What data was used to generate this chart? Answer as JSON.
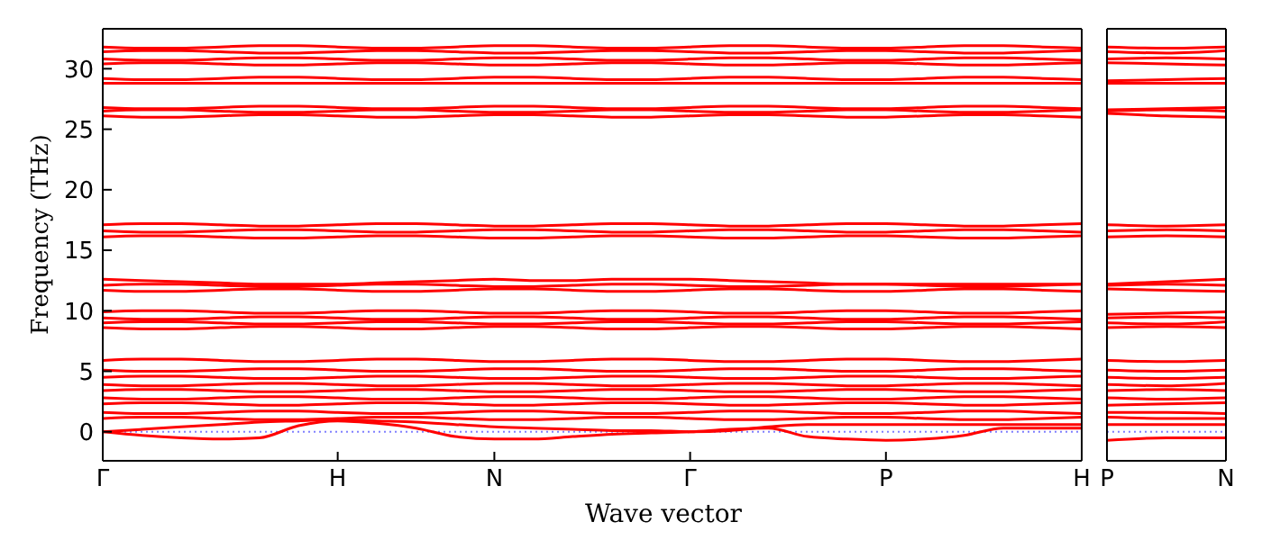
{
  "chart_data": [
    {
      "type": "line",
      "ylabel": "Frequency (THz)",
      "xlabel": "Wave vector",
      "ylim": [
        -2.4,
        33.3
      ],
      "yticks": [
        0,
        5,
        10,
        15,
        20,
        25,
        30
      ],
      "categories": [
        "Γ",
        null,
        null,
        null,
        null,
        null,
        "H",
        null,
        null,
        null,
        "N",
        null,
        null,
        null,
        null,
        "Γ",
        null,
        null,
        null,
        null,
        "P",
        null,
        null,
        null,
        null,
        "H"
      ],
      "marker": "none",
      "line_style": "solid",
      "legend": false,
      "ref_lines": [
        {
          "axis": "y",
          "value": 0,
          "color": "#8080ff",
          "line_style": "dotted"
        }
      ],
      "series": [
        {
          "color": "#ff0000",
          "values": [
            0,
            -0.3,
            -0.5,
            -0.6,
            -0.5,
            0.5,
            0.9,
            0.7,
            0.3,
            -0.4,
            -0.6,
            -0.6,
            -0.4,
            -0.2,
            -0.1,
            0,
            0.2,
            0.3,
            -0.4,
            -0.6,
            -0.7,
            -0.6,
            -0.3,
            0.3,
            0.3,
            0.3
          ]
        },
        {
          "color": "#ff0000",
          "values": [
            0,
            0.2,
            0.4,
            0.6,
            0.8,
            0.9,
            1,
            0.9,
            0.8,
            0.6,
            0.4,
            0.3,
            0.2,
            0.1,
            0.1,
            0,
            0.1,
            0.4,
            0.6,
            0.6,
            0.6,
            0.6,
            0.6,
            0.6,
            0.6,
            0.6
          ]
        },
        {
          "color": "#ff0000",
          "values": [
            1.1,
            1.2,
            1.2,
            1.1,
            1,
            1,
            1.1,
            1.2,
            1.2,
            1.1,
            1,
            1,
            1.1,
            1.2,
            1.2,
            1.1,
            1,
            1,
            1.1,
            1.2,
            1.2,
            1.1,
            1,
            1,
            1.1,
            1.2
          ]
        },
        {
          "color": "#ff0000",
          "values": [
            1.6,
            1.5,
            1.5,
            1.6,
            1.7,
            1.7,
            1.6,
            1.5,
            1.5,
            1.6,
            1.7,
            1.7,
            1.6,
            1.5,
            1.5,
            1.6,
            1.7,
            1.7,
            1.6,
            1.5,
            1.5,
            1.6,
            1.7,
            1.7,
            1.6,
            1.5
          ]
        },
        {
          "color": "#ff0000",
          "values": [
            2.3,
            2.4,
            2.4,
            2.3,
            2.2,
            2.2,
            2.3,
            2.4,
            2.4,
            2.3,
            2.2,
            2.2,
            2.3,
            2.4,
            2.4,
            2.3,
            2.2,
            2.2,
            2.3,
            2.4,
            2.4,
            2.3,
            2.2,
            2.2,
            2.3,
            2.4
          ]
        },
        {
          "color": "#ff0000",
          "values": [
            2.8,
            2.7,
            2.7,
            2.8,
            2.9,
            2.9,
            2.8,
            2.7,
            2.7,
            2.8,
            2.9,
            2.9,
            2.8,
            2.7,
            2.7,
            2.8,
            2.9,
            2.9,
            2.8,
            2.7,
            2.7,
            2.8,
            2.9,
            2.9,
            2.8,
            2.7
          ]
        },
        {
          "color": "#ff0000",
          "values": [
            3.4,
            3.5,
            3.5,
            3.4,
            3.3,
            3.3,
            3.4,
            3.5,
            3.5,
            3.4,
            3.3,
            3.3,
            3.4,
            3.5,
            3.5,
            3.4,
            3.3,
            3.3,
            3.4,
            3.5,
            3.5,
            3.4,
            3.3,
            3.3,
            3.4,
            3.5
          ]
        },
        {
          "color": "#ff0000",
          "values": [
            3.9,
            3.8,
            3.8,
            3.9,
            4,
            4,
            3.9,
            3.8,
            3.8,
            3.9,
            4,
            4,
            3.9,
            3.8,
            3.8,
            3.9,
            4,
            4,
            3.9,
            3.8,
            3.8,
            3.9,
            4,
            4,
            3.9,
            3.8
          ]
        },
        {
          "color": "#ff0000",
          "values": [
            4.5,
            4.6,
            4.6,
            4.5,
            4.4,
            4.4,
            4.5,
            4.6,
            4.6,
            4.5,
            4.4,
            4.4,
            4.5,
            4.6,
            4.6,
            4.5,
            4.4,
            4.4,
            4.5,
            4.6,
            4.6,
            4.5,
            4.4,
            4.4,
            4.5,
            4.6
          ]
        },
        {
          "color": "#ff0000",
          "values": [
            5.1,
            5,
            5,
            5.1,
            5.2,
            5.2,
            5.1,
            5,
            5,
            5.1,
            5.2,
            5.2,
            5.1,
            5,
            5,
            5.1,
            5.2,
            5.2,
            5.1,
            5,
            5,
            5.1,
            5.2,
            5.2,
            5.1,
            5
          ]
        },
        {
          "color": "#ff0000",
          "values": [
            5.9,
            6,
            6,
            5.9,
            5.8,
            5.8,
            5.9,
            6,
            6,
            5.9,
            5.8,
            5.8,
            5.9,
            6,
            6,
            5.9,
            5.8,
            5.8,
            5.9,
            6,
            6,
            5.9,
            5.8,
            5.8,
            5.9,
            6
          ]
        },
        {
          "color": "#ff0000",
          "values": [
            8.6,
            8.5,
            8.5,
            8.6,
            8.7,
            8.7,
            8.6,
            8.5,
            8.5,
            8.6,
            8.7,
            8.7,
            8.6,
            8.5,
            8.5,
            8.6,
            8.7,
            8.7,
            8.6,
            8.5,
            8.5,
            8.6,
            8.7,
            8.7,
            8.6,
            8.5
          ]
        },
        {
          "color": "#ff0000",
          "values": [
            9,
            9.1,
            9.1,
            9,
            8.9,
            8.9,
            9,
            9.1,
            9.1,
            9,
            8.9,
            8.9,
            9,
            9.1,
            9.1,
            9,
            8.9,
            8.9,
            9,
            9.1,
            9.1,
            9,
            8.9,
            8.9,
            9,
            9.1
          ]
        },
        {
          "color": "#ff0000",
          "values": [
            9.4,
            9.3,
            9.3,
            9.4,
            9.5,
            9.5,
            9.4,
            9.3,
            9.3,
            9.4,
            9.5,
            9.5,
            9.4,
            9.3,
            9.3,
            9.4,
            9.5,
            9.5,
            9.4,
            9.3,
            9.3,
            9.4,
            9.5,
            9.5,
            9.4,
            9.3
          ]
        },
        {
          "color": "#ff0000",
          "values": [
            9.9,
            10,
            10,
            9.9,
            9.8,
            9.8,
            9.9,
            10,
            10,
            9.9,
            9.8,
            9.8,
            9.9,
            10,
            10,
            9.9,
            9.8,
            9.8,
            9.9,
            10,
            10,
            9.9,
            9.8,
            9.8,
            9.9,
            10
          ]
        },
        {
          "color": "#ff0000",
          "values": [
            11.7,
            11.6,
            11.6,
            11.7,
            11.8,
            11.8,
            11.7,
            11.6,
            11.6,
            11.7,
            11.8,
            11.8,
            11.7,
            11.6,
            11.6,
            11.7,
            11.8,
            11.8,
            11.7,
            11.6,
            11.6,
            11.7,
            11.8,
            11.8,
            11.7,
            11.6
          ]
        },
        {
          "color": "#ff0000",
          "values": [
            12.1,
            12.2,
            12.2,
            12.1,
            12,
            12,
            12.1,
            12.2,
            12.2,
            12.1,
            12,
            12,
            12.1,
            12.2,
            12.2,
            12.1,
            12,
            12,
            12.1,
            12.2,
            12.2,
            12.1,
            12,
            12,
            12.1,
            12.2
          ]
        },
        {
          "color": "#ff0000",
          "values": [
            12.6,
            12.5,
            12.4,
            12.3,
            12.2,
            12.2,
            12.2,
            12.3,
            12.4,
            12.5,
            12.6,
            12.5,
            12.5,
            12.6,
            12.6,
            12.6,
            12.5,
            12.4,
            12.3,
            12.2,
            12.2,
            12.2,
            12.2,
            12.2,
            12.2,
            12.2
          ]
        },
        {
          "color": "#ff0000",
          "values": [
            16.1,
            16.2,
            16.2,
            16.1,
            16,
            16,
            16.1,
            16.2,
            16.2,
            16.1,
            16,
            16,
            16.1,
            16.2,
            16.2,
            16.1,
            16,
            16,
            16.1,
            16.2,
            16.2,
            16.1,
            16,
            16,
            16.1,
            16.2
          ]
        },
        {
          "color": "#ff0000",
          "values": [
            16.6,
            16.5,
            16.5,
            16.6,
            16.7,
            16.7,
            16.6,
            16.5,
            16.5,
            16.6,
            16.7,
            16.7,
            16.6,
            16.5,
            16.5,
            16.6,
            16.7,
            16.7,
            16.6,
            16.5,
            16.5,
            16.6,
            16.7,
            16.7,
            16.6,
            16.5
          ]
        },
        {
          "color": "#ff0000",
          "values": [
            17.1,
            17.2,
            17.2,
            17.1,
            17,
            17,
            17.1,
            17.2,
            17.2,
            17.1,
            17,
            17,
            17.1,
            17.2,
            17.2,
            17.1,
            17,
            17,
            17.1,
            17.2,
            17.2,
            17.1,
            17,
            17,
            17.1,
            17.2
          ]
        },
        {
          "color": "#ff0000",
          "values": [
            26.1,
            26,
            26,
            26.1,
            26.2,
            26.2,
            26.1,
            26,
            26,
            26.1,
            26.2,
            26.2,
            26.1,
            26,
            26,
            26.1,
            26.2,
            26.2,
            26.1,
            26,
            26,
            26.1,
            26.2,
            26.2,
            26.1,
            26
          ]
        },
        {
          "color": "#ff0000",
          "values": [
            26.5,
            26.6,
            26.6,
            26.5,
            26.4,
            26.4,
            26.5,
            26.6,
            26.6,
            26.5,
            26.4,
            26.4,
            26.5,
            26.6,
            26.6,
            26.5,
            26.4,
            26.4,
            26.5,
            26.6,
            26.6,
            26.5,
            26.4,
            26.4,
            26.5,
            26.6
          ]
        },
        {
          "color": "#ff0000",
          "values": [
            26.8,
            26.7,
            26.7,
            26.8,
            26.9,
            26.9,
            26.8,
            26.7,
            26.7,
            26.8,
            26.9,
            26.9,
            26.8,
            26.7,
            26.7,
            26.8,
            26.9,
            26.9,
            26.8,
            26.7,
            26.7,
            26.8,
            26.9,
            26.9,
            26.8,
            26.7
          ]
        },
        {
          "color": "#ff0000",
          "values": [
            28.8,
            28.8,
            28.8,
            28.8,
            28.8,
            28.8,
            28.8,
            28.8,
            28.8,
            28.8,
            28.8,
            28.8,
            28.8,
            28.8,
            28.8,
            28.8,
            28.8,
            28.8,
            28.8,
            28.8,
            28.8,
            28.8,
            28.8,
            28.8,
            28.8,
            28.8
          ]
        },
        {
          "color": "#ff0000",
          "values": [
            29.2,
            29.1,
            29.1,
            29.2,
            29.3,
            29.3,
            29.2,
            29.1,
            29.1,
            29.2,
            29.3,
            29.3,
            29.2,
            29.1,
            29.1,
            29.2,
            29.3,
            29.3,
            29.2,
            29.1,
            29.1,
            29.2,
            29.3,
            29.3,
            29.2,
            29.1
          ]
        },
        {
          "color": "#ff0000",
          "values": [
            30.4,
            30.5,
            30.5,
            30.4,
            30.3,
            30.3,
            30.4,
            30.5,
            30.5,
            30.4,
            30.3,
            30.3,
            30.4,
            30.5,
            30.5,
            30.4,
            30.3,
            30.3,
            30.4,
            30.5,
            30.5,
            30.4,
            30.3,
            30.3,
            30.4,
            30.5
          ]
        },
        {
          "color": "#ff0000",
          "values": [
            30.8,
            30.7,
            30.7,
            30.8,
            30.9,
            30.9,
            30.8,
            30.7,
            30.7,
            30.8,
            30.9,
            30.9,
            30.8,
            30.7,
            30.7,
            30.8,
            30.9,
            30.9,
            30.8,
            30.7,
            30.7,
            30.8,
            30.9,
            30.9,
            30.8,
            30.7
          ]
        },
        {
          "color": "#ff0000",
          "values": [
            31.4,
            31.5,
            31.5,
            31.4,
            31.3,
            31.3,
            31.4,
            31.5,
            31.5,
            31.4,
            31.3,
            31.3,
            31.4,
            31.5,
            31.5,
            31.4,
            31.3,
            31.3,
            31.4,
            31.5,
            31.5,
            31.4,
            31.3,
            31.3,
            31.4,
            31.5
          ]
        },
        {
          "color": "#ff0000",
          "values": [
            31.8,
            31.7,
            31.7,
            31.8,
            31.9,
            31.9,
            31.8,
            31.7,
            31.7,
            31.8,
            31.9,
            31.9,
            31.8,
            31.7,
            31.7,
            31.8,
            31.9,
            31.9,
            31.8,
            31.7,
            31.7,
            31.8,
            31.9,
            31.9,
            31.8,
            31.7
          ]
        }
      ]
    },
    {
      "type": "line",
      "tick_labels": "x",
      "ylim": [
        -2.4,
        33.3
      ],
      "yticks": [
        0,
        5,
        10,
        15,
        20,
        25,
        30
      ],
      "categories": [
        "P",
        null,
        "N"
      ],
      "marker": "none",
      "line_style": "solid",
      "legend": false,
      "ref_lines": [
        {
          "axis": "y",
          "value": 0,
          "color": "#8080ff",
          "line_style": "dotted"
        }
      ],
      "series": [
        {
          "color": "#ff0000",
          "values": [
            -0.7,
            -0.5,
            -0.5
          ]
        },
        {
          "color": "#ff0000",
          "values": [
            0.6,
            0.6,
            0.6
          ]
        },
        {
          "color": "#ff0000",
          "values": [
            1.2,
            1.1,
            1.1
          ]
        },
        {
          "color": "#ff0000",
          "values": [
            1.6,
            1.6,
            1.5
          ]
        },
        {
          "color": "#ff0000",
          "values": [
            2.2,
            2.3,
            2.4
          ]
        },
        {
          "color": "#ff0000",
          "values": [
            2.8,
            2.7,
            2.8
          ]
        },
        {
          "color": "#ff0000",
          "values": [
            3.4,
            3.5,
            3.4
          ]
        },
        {
          "color": "#ff0000",
          "values": [
            3.9,
            3.8,
            4
          ]
        },
        {
          "color": "#ff0000",
          "values": [
            4.5,
            4.4,
            4.5
          ]
        },
        {
          "color": "#ff0000",
          "values": [
            5.1,
            5,
            5.1
          ]
        },
        {
          "color": "#ff0000",
          "values": [
            5.9,
            5.8,
            5.9
          ]
        },
        {
          "color": "#ff0000",
          "values": [
            8.6,
            8.7,
            8.6
          ]
        },
        {
          "color": "#ff0000",
          "values": [
            9,
            8.9,
            9.1
          ]
        },
        {
          "color": "#ff0000",
          "values": [
            9.4,
            9.5,
            9.4
          ]
        },
        {
          "color": "#ff0000",
          "values": [
            9.7,
            9.8,
            9.9
          ]
        },
        {
          "color": "#ff0000",
          "values": [
            11.8,
            11.7,
            11.6
          ]
        },
        {
          "color": "#ff0000",
          "values": [
            12.1,
            12.2,
            12.1
          ]
        },
        {
          "color": "#ff0000",
          "values": [
            12.2,
            12.4,
            12.6
          ]
        },
        {
          "color": "#ff0000",
          "values": [
            16.1,
            16.2,
            16.1
          ]
        },
        {
          "color": "#ff0000",
          "values": [
            16.6,
            16.7,
            16.6
          ]
        },
        {
          "color": "#ff0000",
          "values": [
            17.1,
            17,
            17.1
          ]
        },
        {
          "color": "#ff0000",
          "values": [
            26.3,
            26.1,
            26
          ]
        },
        {
          "color": "#ff0000",
          "values": [
            26.5,
            26.6,
            26.5
          ]
        },
        {
          "color": "#ff0000",
          "values": [
            26.6,
            26.7,
            26.8
          ]
        },
        {
          "color": "#ff0000",
          "values": [
            28.8,
            28.8,
            28.8
          ]
        },
        {
          "color": "#ff0000",
          "values": [
            29,
            29.1,
            29.2
          ]
        },
        {
          "color": "#ff0000",
          "values": [
            30.5,
            30.4,
            30.3
          ]
        },
        {
          "color": "#ff0000",
          "values": [
            30.8,
            30.9,
            30.8
          ]
        },
        {
          "color": "#ff0000",
          "values": [
            31.4,
            31.3,
            31.5
          ]
        },
        {
          "color": "#ff0000",
          "values": [
            31.8,
            31.7,
            31.8
          ]
        }
      ]
    }
  ]
}
